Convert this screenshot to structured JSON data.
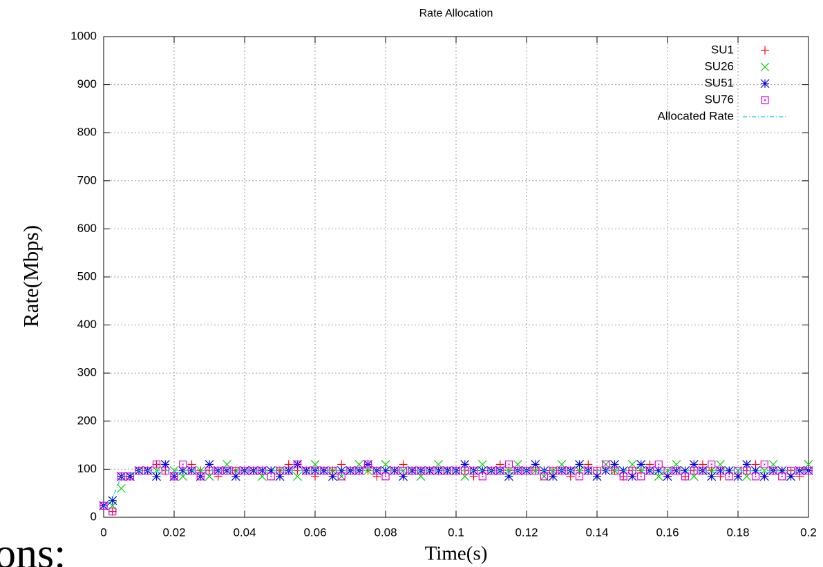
{
  "chart_data": {
    "type": "scatter",
    "title": "Rate Allocation",
    "xlabel": "Time(s)",
    "ylabel": "Rate(Mbps)",
    "caption_fragment": "ons:",
    "x": [
      0,
      0.0025,
      0.005,
      0.0075,
      0.01,
      0.0125,
      0.015,
      0.0175,
      0.02,
      0.0225,
      0.025,
      0.0275,
      0.03,
      0.0325,
      0.035,
      0.0375,
      0.04,
      0.0425,
      0.045,
      0.0475,
      0.05,
      0.0525,
      0.055,
      0.0575,
      0.06,
      0.0625,
      0.065,
      0.0675,
      0.07,
      0.0725,
      0.075,
      0.0775,
      0.08,
      0.0825,
      0.085,
      0.0875,
      0.09,
      0.0925,
      0.095,
      0.0975,
      0.1,
      0.1025,
      0.105,
      0.1075,
      0.11,
      0.1125,
      0.115,
      0.1175,
      0.12,
      0.1225,
      0.125,
      0.1275,
      0.13,
      0.1325,
      0.135,
      0.1375,
      0.14,
      0.1425,
      0.145,
      0.1475,
      0.15,
      0.1525,
      0.155,
      0.1575,
      0.16,
      0.1625,
      0.165,
      0.1675,
      0.17,
      0.1725,
      0.175,
      0.1775,
      0.18,
      0.1825,
      0.185,
      0.1875,
      0.19,
      0.1925,
      0.195,
      0.1975,
      0.2
    ],
    "series": [
      {
        "name": "SU1",
        "color": "#ff0000",
        "marker": "plus",
        "values": [
          24,
          12,
          85,
          85,
          97,
          97,
          110,
          97,
          85,
          97,
          110,
          97,
          97,
          85,
          97,
          97,
          97,
          97,
          97,
          97,
          97,
          110,
          97,
          97,
          85,
          97,
          97,
          110,
          97,
          97,
          97,
          85,
          97,
          97,
          110,
          97,
          97,
          97,
          97,
          97,
          97,
          97,
          85,
          97,
          97,
          110,
          97,
          97,
          97,
          97,
          97,
          97,
          97,
          85,
          97,
          110,
          97,
          97,
          97,
          85,
          97,
          97,
          110,
          97,
          85,
          97,
          85,
          97,
          110,
          97,
          85,
          97,
          85,
          97,
          110,
          85,
          97,
          97,
          97,
          85,
          97
        ]
      },
      {
        "name": "SU26",
        "color": "#00d000",
        "marker": "cross",
        "values": [
          24,
          24,
          60,
          85,
          97,
          97,
          97,
          110,
          97,
          85,
          97,
          97,
          85,
          97,
          110,
          97,
          97,
          97,
          85,
          97,
          97,
          97,
          85,
          97,
          110,
          97,
          97,
          85,
          97,
          110,
          97,
          97,
          110,
          97,
          97,
          97,
          85,
          97,
          110,
          97,
          97,
          85,
          97,
          110,
          97,
          97,
          97,
          110,
          97,
          97,
          85,
          97,
          110,
          97,
          97,
          97,
          85,
          110,
          97,
          97,
          110,
          97,
          97,
          85,
          97,
          110,
          97,
          85,
          97,
          97,
          110,
          97,
          97,
          85,
          97,
          97,
          110,
          97,
          85,
          97,
          110
        ]
      },
      {
        "name": "SU51",
        "color": "#0000e0",
        "marker": "star",
        "values": [
          24,
          35,
          85,
          85,
          97,
          97,
          85,
          110,
          85,
          97,
          97,
          85,
          110,
          97,
          97,
          85,
          97,
          97,
          97,
          97,
          85,
          97,
          110,
          97,
          97,
          97,
          85,
          97,
          97,
          97,
          110,
          97,
          97,
          97,
          85,
          97,
          97,
          97,
          97,
          97,
          97,
          110,
          97,
          97,
          97,
          97,
          85,
          97,
          97,
          110,
          97,
          85,
          97,
          97,
          110,
          97,
          85,
          97,
          110,
          97,
          85,
          110,
          97,
          97,
          85,
          97,
          97,
          110,
          97,
          85,
          97,
          97,
          85,
          110,
          97,
          85,
          97,
          97,
          85,
          97,
          97
        ]
      },
      {
        "name": "SU76",
        "color": "#e000e0",
        "marker": "box",
        "values": [
          24,
          12,
          85,
          85,
          97,
          97,
          110,
          97,
          85,
          110,
          97,
          85,
          97,
          97,
          97,
          97,
          97,
          97,
          97,
          85,
          97,
          97,
          110,
          97,
          97,
          97,
          97,
          85,
          97,
          97,
          110,
          97,
          85,
          97,
          97,
          97,
          97,
          97,
          97,
          97,
          97,
          97,
          97,
          85,
          97,
          97,
          110,
          97,
          97,
          97,
          85,
          97,
          97,
          97,
          85,
          97,
          97,
          110,
          97,
          85,
          97,
          85,
          97,
          110,
          97,
          97,
          85,
          97,
          97,
          110,
          97,
          85,
          97,
          97,
          85,
          110,
          97,
          85,
          97,
          97,
          97
        ]
      },
      {
        "name": "Allocated Rate",
        "color": "#00d0d0",
        "marker": "line",
        "values": [
          20,
          40,
          85,
          90,
          97,
          97,
          97,
          97,
          97,
          97,
          97,
          97,
          97,
          97,
          97,
          97,
          97,
          97,
          97,
          97,
          97,
          97,
          97,
          97,
          97,
          97,
          97,
          97,
          97,
          97,
          97,
          97,
          97,
          97,
          97,
          97,
          97,
          97,
          97,
          97,
          97,
          97,
          97,
          97,
          97,
          97,
          97,
          97,
          97,
          97,
          97,
          97,
          97,
          97,
          97,
          97,
          97,
          97,
          97,
          97,
          97,
          97,
          97,
          97,
          97,
          97,
          97,
          97,
          97,
          97,
          97,
          97,
          97,
          97,
          97,
          97,
          97,
          97,
          97,
          97,
          97
        ]
      }
    ],
    "xlim": [
      0,
      0.2
    ],
    "ylim": [
      0,
      1000
    ],
    "xticks": [
      0,
      0.02,
      0.04,
      0.06,
      0.08,
      0.1,
      0.12,
      0.14,
      0.16,
      0.18,
      0.2
    ],
    "yticks": [
      0,
      100,
      200,
      300,
      400,
      500,
      600,
      700,
      800,
      900,
      1000
    ],
    "grid": true,
    "legend": "top-right"
  }
}
